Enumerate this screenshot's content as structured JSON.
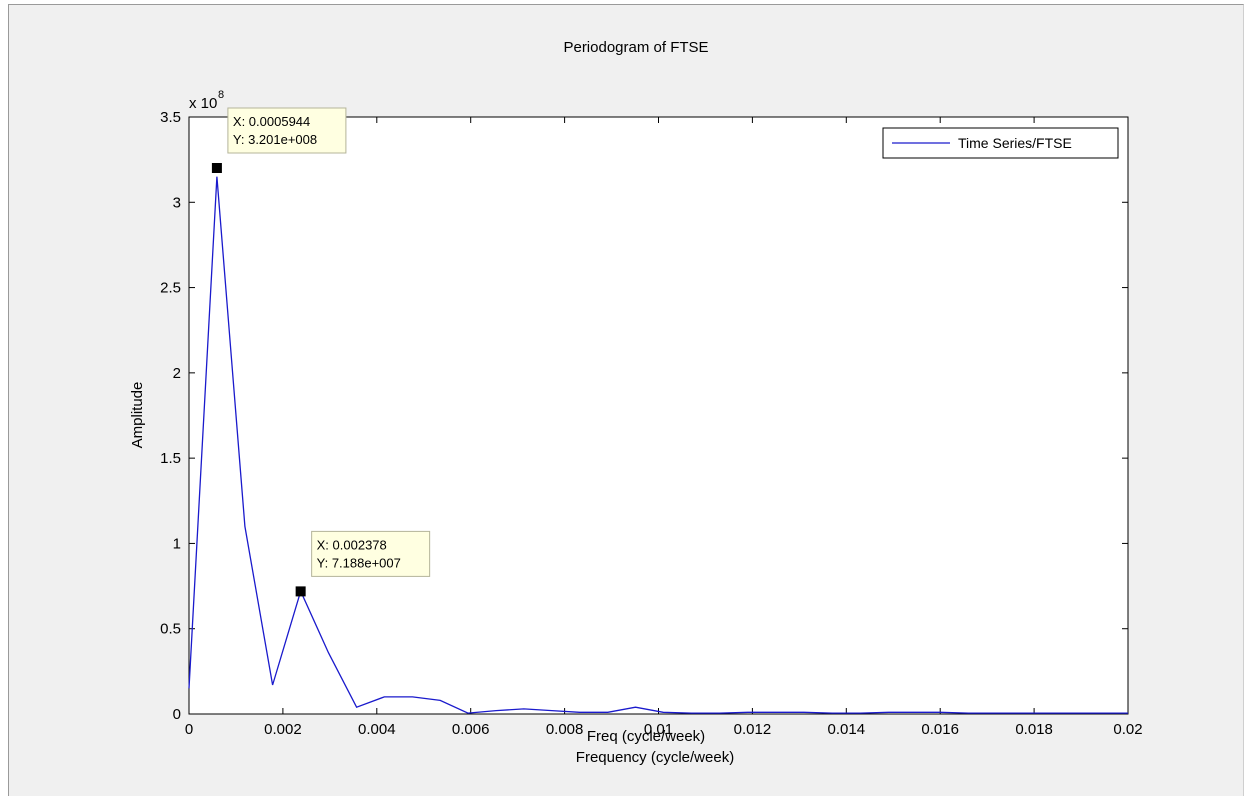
{
  "chart_data": {
    "type": "line",
    "title": "Periodogram of FTSE",
    "xlabel": "Frequency (cycle/week)",
    "xlabel_overlap": "Freq (cycle/week)",
    "ylabel": "Amplitude",
    "y_exponent_label": "x 10",
    "y_exponent_power": "8",
    "xlim": [
      0,
      0.02
    ],
    "ylim": [
      0,
      3.5
    ],
    "x_ticks": [
      0,
      0.002,
      0.004,
      0.006,
      0.008,
      0.01,
      0.012,
      0.014,
      0.016,
      0.018,
      0.02
    ],
    "x_tick_labels": [
      "0",
      "0.002",
      "0.004",
      "0.006",
      "0.008",
      "0.01",
      "0.012",
      "0.014",
      "0.016",
      "0.018",
      "0.02"
    ],
    "y_ticks": [
      0,
      0.5,
      1,
      1.5,
      2,
      2.5,
      3,
      3.5
    ],
    "y_tick_labels": [
      "0",
      "0.5",
      "1",
      "1.5",
      "2",
      "2.5",
      "3",
      "3.5"
    ],
    "grid": false,
    "legend": {
      "placement": "top-right",
      "entries": [
        "Time Series/FTSE"
      ]
    },
    "series": [
      {
        "name": "Time Series/FTSE",
        "color": "#1a1acc",
        "x": [
          0,
          0.000594,
          0.00119,
          0.00178,
          0.00238,
          0.00297,
          0.00357,
          0.00416,
          0.00476,
          0.00535,
          0.00594,
          0.00654,
          0.00713,
          0.00773,
          0.00832,
          0.00892,
          0.00951,
          0.0101,
          0.0107,
          0.0113,
          0.0119,
          0.0125,
          0.0131,
          0.0137,
          0.0143,
          0.0149,
          0.0155,
          0.016,
          0.0166,
          0.0172,
          0.0178,
          0.0184,
          0.019,
          0.0196,
          0.02
        ],
        "values": [
          0.15,
          3.15,
          1.1,
          0.17,
          0.72,
          0.36,
          0.04,
          0.1,
          0.1,
          0.08,
          0.005,
          0.02,
          0.03,
          0.02,
          0.01,
          0.01,
          0.04,
          0.01,
          0.005,
          0.005,
          0.01,
          0.01,
          0.01,
          0.005,
          0.005,
          0.01,
          0.01,
          0.01,
          0.005,
          0.005,
          0.005,
          0.005,
          0.005,
          0.005,
          0.005
        ]
      }
    ],
    "data_tips": [
      {
        "x": 0.0005944,
        "y": 3.201,
        "x_text": "X: 0.0005944",
        "y_text": "Y: 3.201e+008"
      },
      {
        "x": 0.002378,
        "y": 0.7188,
        "x_text": "X: 0.002378",
        "y_text": "Y: 7.188e+007"
      }
    ]
  }
}
